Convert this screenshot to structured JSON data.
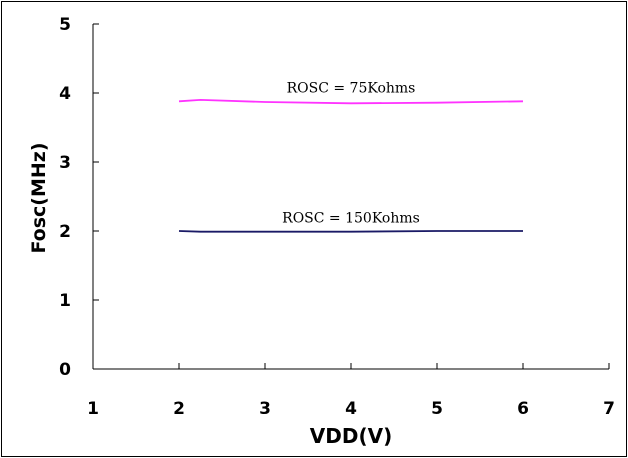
{
  "chart_data": {
    "type": "line",
    "title": "",
    "xlabel": "VDD(V)",
    "ylabel": "Fosc(MHz)",
    "xlim": [
      1,
      7
    ],
    "ylim": [
      0,
      5
    ],
    "x_ticks": [
      "1",
      "2",
      "3",
      "4",
      "5",
      "6",
      "7"
    ],
    "y_ticks": [
      "0",
      "1",
      "2",
      "3",
      "4",
      "5"
    ],
    "grid": false,
    "legend": "none",
    "series": [
      {
        "name": "ROSC = 75Kohms",
        "color": "#ff33ff",
        "x": [
          2,
          2.25,
          3,
          4,
          5,
          6
        ],
        "y": [
          3.88,
          3.9,
          3.87,
          3.85,
          3.86,
          3.88
        ]
      },
      {
        "name": "ROSC = 150Kohms",
        "color": "#1a1a66",
        "x": [
          2,
          2.25,
          3,
          4,
          5,
          6
        ],
        "y": [
          2.0,
          1.99,
          1.99,
          1.99,
          2.0,
          2.0
        ]
      }
    ]
  }
}
